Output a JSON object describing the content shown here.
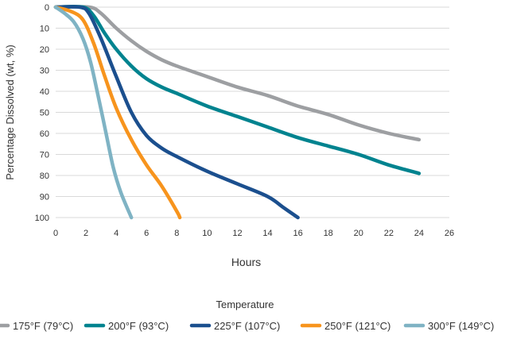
{
  "chart_data": {
    "type": "line",
    "title": "",
    "xlabel": "Hours",
    "ylabel": "Percentage Dissolved (wt, %)",
    "xlim": [
      0,
      26
    ],
    "ylim": [
      0,
      100
    ],
    "y_inverted": true,
    "x_ticks": [
      0,
      2,
      4,
      6,
      8,
      10,
      12,
      14,
      16,
      18,
      20,
      22,
      24,
      26
    ],
    "y_ticks": [
      0,
      10,
      20,
      30,
      40,
      50,
      60,
      70,
      80,
      90,
      100
    ],
    "grid": {
      "horizontal": true,
      "vertical": false
    },
    "legend_title": "Temperature",
    "legend_position": "bottom",
    "series": [
      {
        "name": "175°F (79°C)",
        "color": "#9d9fa2",
        "points": [
          [
            0,
            0
          ],
          [
            2.2,
            0
          ],
          [
            3,
            3
          ],
          [
            4,
            10
          ],
          [
            5,
            16
          ],
          [
            6,
            21
          ],
          [
            7,
            25
          ],
          [
            8,
            28
          ],
          [
            10,
            33
          ],
          [
            12,
            38
          ],
          [
            14,
            42
          ],
          [
            16,
            47
          ],
          [
            18,
            51
          ],
          [
            20,
            56
          ],
          [
            22,
            60
          ],
          [
            24,
            63
          ]
        ]
      },
      {
        "name": "200°F (93°C)",
        "color": "#00838f",
        "points": [
          [
            0,
            0
          ],
          [
            1.8,
            0
          ],
          [
            2.5,
            4
          ],
          [
            3.2,
            12
          ],
          [
            4,
            20
          ],
          [
            5,
            28
          ],
          [
            6,
            34
          ],
          [
            7,
            38
          ],
          [
            8,
            41
          ],
          [
            10,
            47
          ],
          [
            12,
            52
          ],
          [
            14,
            57
          ],
          [
            16,
            62
          ],
          [
            18,
            66
          ],
          [
            20,
            70
          ],
          [
            22,
            75
          ],
          [
            24,
            79
          ]
        ]
      },
      {
        "name": "225°F (107°C)",
        "color": "#1b4f8e",
        "points": [
          [
            0,
            0
          ],
          [
            1.6,
            0
          ],
          [
            2.2,
            3
          ],
          [
            3,
            15
          ],
          [
            4,
            33
          ],
          [
            5,
            50
          ],
          [
            6,
            61
          ],
          [
            7,
            67
          ],
          [
            8,
            71
          ],
          [
            10,
            78
          ],
          [
            12,
            84
          ],
          [
            14,
            90
          ],
          [
            15,
            95
          ],
          [
            16,
            100
          ]
        ]
      },
      {
        "name": "250°F (121°C)",
        "color": "#f7941d",
        "points": [
          [
            0,
            0
          ],
          [
            1,
            2
          ],
          [
            1.8,
            6
          ],
          [
            2.5,
            17
          ],
          [
            3.2,
            32
          ],
          [
            4,
            48
          ],
          [
            5,
            63
          ],
          [
            6,
            75
          ],
          [
            7,
            85
          ],
          [
            8,
            97
          ],
          [
            8.2,
            100
          ]
        ]
      },
      {
        "name": "300°F (149°C)",
        "color": "#7fb3c4",
        "points": [
          [
            0,
            0
          ],
          [
            0.6,
            3
          ],
          [
            1.2,
            7
          ],
          [
            1.8,
            15
          ],
          [
            2.3,
            26
          ],
          [
            2.8,
            42
          ],
          [
            3.3,
            59
          ],
          [
            3.8,
            76
          ],
          [
            4.3,
            88
          ],
          [
            5,
            100
          ]
        ]
      }
    ]
  }
}
